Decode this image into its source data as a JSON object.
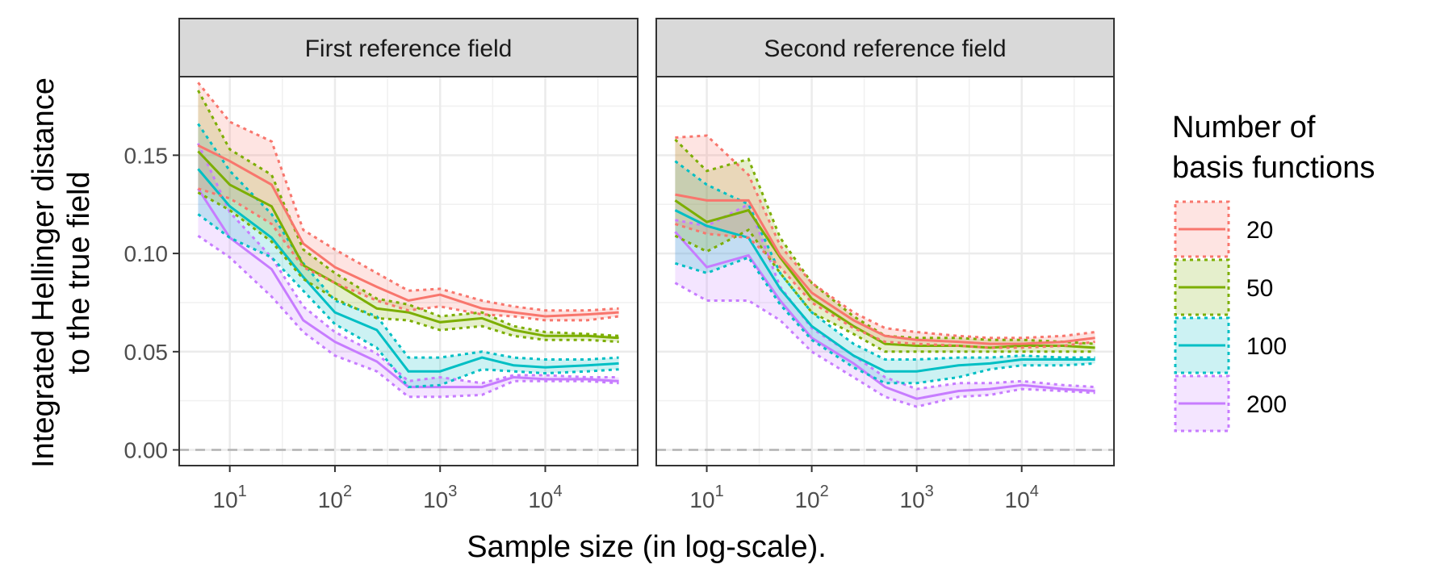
{
  "chart_data": {
    "type": "line",
    "xlabel": "Sample size (in log-scale).",
    "ylabel_lines": [
      "Integrated Hellinger distance",
      "to the true field"
    ],
    "x_scale": "log10",
    "x_range": [
      5,
      50000
    ],
    "ylim": [
      -0.008,
      0.19
    ],
    "y_ticks": [
      0.0,
      0.05,
      0.1,
      0.15
    ],
    "y_tick_labels": [
      "0.00",
      "0.05",
      "0.10",
      "0.15"
    ],
    "x_tick_exponents": [
      "1",
      "2",
      "3",
      "4"
    ],
    "x_tick_base": "10",
    "reference_line_y": 0.0,
    "legend": {
      "title_lines": [
        "Number of",
        "basis functions"
      ],
      "entries": [
        "20",
        "50",
        "100",
        "200"
      ]
    },
    "colors": {
      "20": "#F8766D",
      "50": "#7CAE00",
      "100": "#00BFC4",
      "200": "#C77CFF"
    },
    "panels": [
      {
        "title": "First reference field",
        "x": [
          5,
          10,
          25,
          50,
          100,
          250,
          500,
          1000,
          2500,
          5000,
          10000,
          25000,
          50000
        ],
        "series": [
          {
            "name": "20",
            "values": [
              0.155,
              0.147,
              0.135,
              0.105,
              0.093,
              0.083,
              0.076,
              0.079,
              0.072,
              0.07,
              0.068,
              0.069,
              0.07
            ],
            "lower": [
              0.133,
              0.128,
              0.115,
              0.093,
              0.085,
              0.076,
              0.071,
              0.073,
              0.069,
              0.068,
              0.066,
              0.066,
              0.068
            ],
            "upper": [
              0.187,
              0.167,
              0.157,
              0.112,
              0.102,
              0.09,
              0.081,
              0.082,
              0.076,
              0.073,
              0.071,
              0.071,
              0.072
            ]
          },
          {
            "name": "50",
            "values": [
              0.152,
              0.135,
              0.124,
              0.094,
              0.085,
              0.072,
              0.07,
              0.065,
              0.067,
              0.061,
              0.058,
              0.058,
              0.057
            ],
            "lower": [
              0.131,
              0.122,
              0.106,
              0.087,
              0.077,
              0.067,
              0.066,
              0.061,
              0.063,
              0.058,
              0.056,
              0.056,
              0.055
            ],
            "upper": [
              0.183,
              0.153,
              0.14,
              0.102,
              0.09,
              0.077,
              0.074,
              0.068,
              0.07,
              0.063,
              0.06,
              0.059,
              0.058
            ]
          },
          {
            "name": "100",
            "values": [
              0.143,
              0.124,
              0.108,
              0.088,
              0.07,
              0.061,
              0.04,
              0.04,
              0.047,
              0.043,
              0.042,
              0.043,
              0.044
            ],
            "lower": [
              0.12,
              0.108,
              0.098,
              0.081,
              0.064,
              0.052,
              0.032,
              0.033,
              0.041,
              0.04,
              0.039,
              0.04,
              0.041
            ],
            "upper": [
              0.166,
              0.142,
              0.12,
              0.095,
              0.076,
              0.068,
              0.047,
              0.047,
              0.05,
              0.047,
              0.046,
              0.046,
              0.047
            ]
          },
          {
            "name": "200",
            "values": [
              0.133,
              0.108,
              0.092,
              0.066,
              0.055,
              0.045,
              0.032,
              0.032,
              0.032,
              0.037,
              0.036,
              0.036,
              0.035
            ],
            "lower": [
              0.109,
              0.098,
              0.078,
              0.06,
              0.048,
              0.04,
              0.027,
              0.027,
              0.028,
              0.035,
              0.035,
              0.035,
              0.034
            ],
            "upper": [
              0.156,
              0.121,
              0.098,
              0.073,
              0.06,
              0.049,
              0.035,
              0.037,
              0.034,
              0.038,
              0.038,
              0.037,
              0.037
            ]
          }
        ]
      },
      {
        "title": "Second reference field",
        "x": [
          5,
          10,
          25,
          50,
          100,
          250,
          500,
          1000,
          2500,
          5000,
          10000,
          25000,
          50000
        ],
        "series": [
          {
            "name": "20",
            "values": [
              0.13,
              0.127,
              0.127,
              0.099,
              0.08,
              0.066,
              0.058,
              0.056,
              0.055,
              0.054,
              0.054,
              0.055,
              0.057
            ],
            "lower": [
              0.115,
              0.11,
              0.108,
              0.093,
              0.075,
              0.062,
              0.055,
              0.054,
              0.053,
              0.052,
              0.052,
              0.053,
              0.055
            ],
            "upper": [
              0.159,
              0.16,
              0.14,
              0.104,
              0.085,
              0.07,
              0.062,
              0.06,
              0.058,
              0.057,
              0.057,
              0.058,
              0.06
            ]
          },
          {
            "name": "50",
            "values": [
              0.127,
              0.116,
              0.122,
              0.098,
              0.077,
              0.063,
              0.054,
              0.053,
              0.053,
              0.052,
              0.053,
              0.053,
              0.052
            ],
            "lower": [
              0.109,
              0.101,
              0.112,
              0.09,
              0.07,
              0.059,
              0.05,
              0.05,
              0.05,
              0.05,
              0.05,
              0.05,
              0.05
            ],
            "upper": [
              0.158,
              0.142,
              0.148,
              0.108,
              0.085,
              0.068,
              0.058,
              0.057,
              0.057,
              0.056,
              0.056,
              0.055,
              0.054
            ]
          },
          {
            "name": "100",
            "values": [
              0.122,
              0.114,
              0.108,
              0.082,
              0.063,
              0.048,
              0.04,
              0.04,
              0.043,
              0.044,
              0.046,
              0.046,
              0.046
            ],
            "lower": [
              0.095,
              0.09,
              0.098,
              0.074,
              0.056,
              0.042,
              0.034,
              0.034,
              0.037,
              0.041,
              0.043,
              0.043,
              0.044
            ],
            "upper": [
              0.147,
              0.135,
              0.125,
              0.09,
              0.07,
              0.054,
              0.046,
              0.046,
              0.047,
              0.047,
              0.048,
              0.047,
              0.047
            ]
          },
          {
            "name": "200",
            "values": [
              0.111,
              0.093,
              0.099,
              0.076,
              0.057,
              0.044,
              0.032,
              0.026,
              0.03,
              0.031,
              0.033,
              0.031,
              0.03
            ],
            "lower": [
              0.085,
              0.076,
              0.076,
              0.066,
              0.05,
              0.037,
              0.027,
              0.022,
              0.027,
              0.028,
              0.031,
              0.03,
              0.029
            ],
            "upper": [
              0.117,
              0.114,
              0.125,
              0.083,
              0.062,
              0.048,
              0.037,
              0.031,
              0.034,
              0.034,
              0.035,
              0.033,
              0.032
            ]
          }
        ]
      }
    ]
  }
}
